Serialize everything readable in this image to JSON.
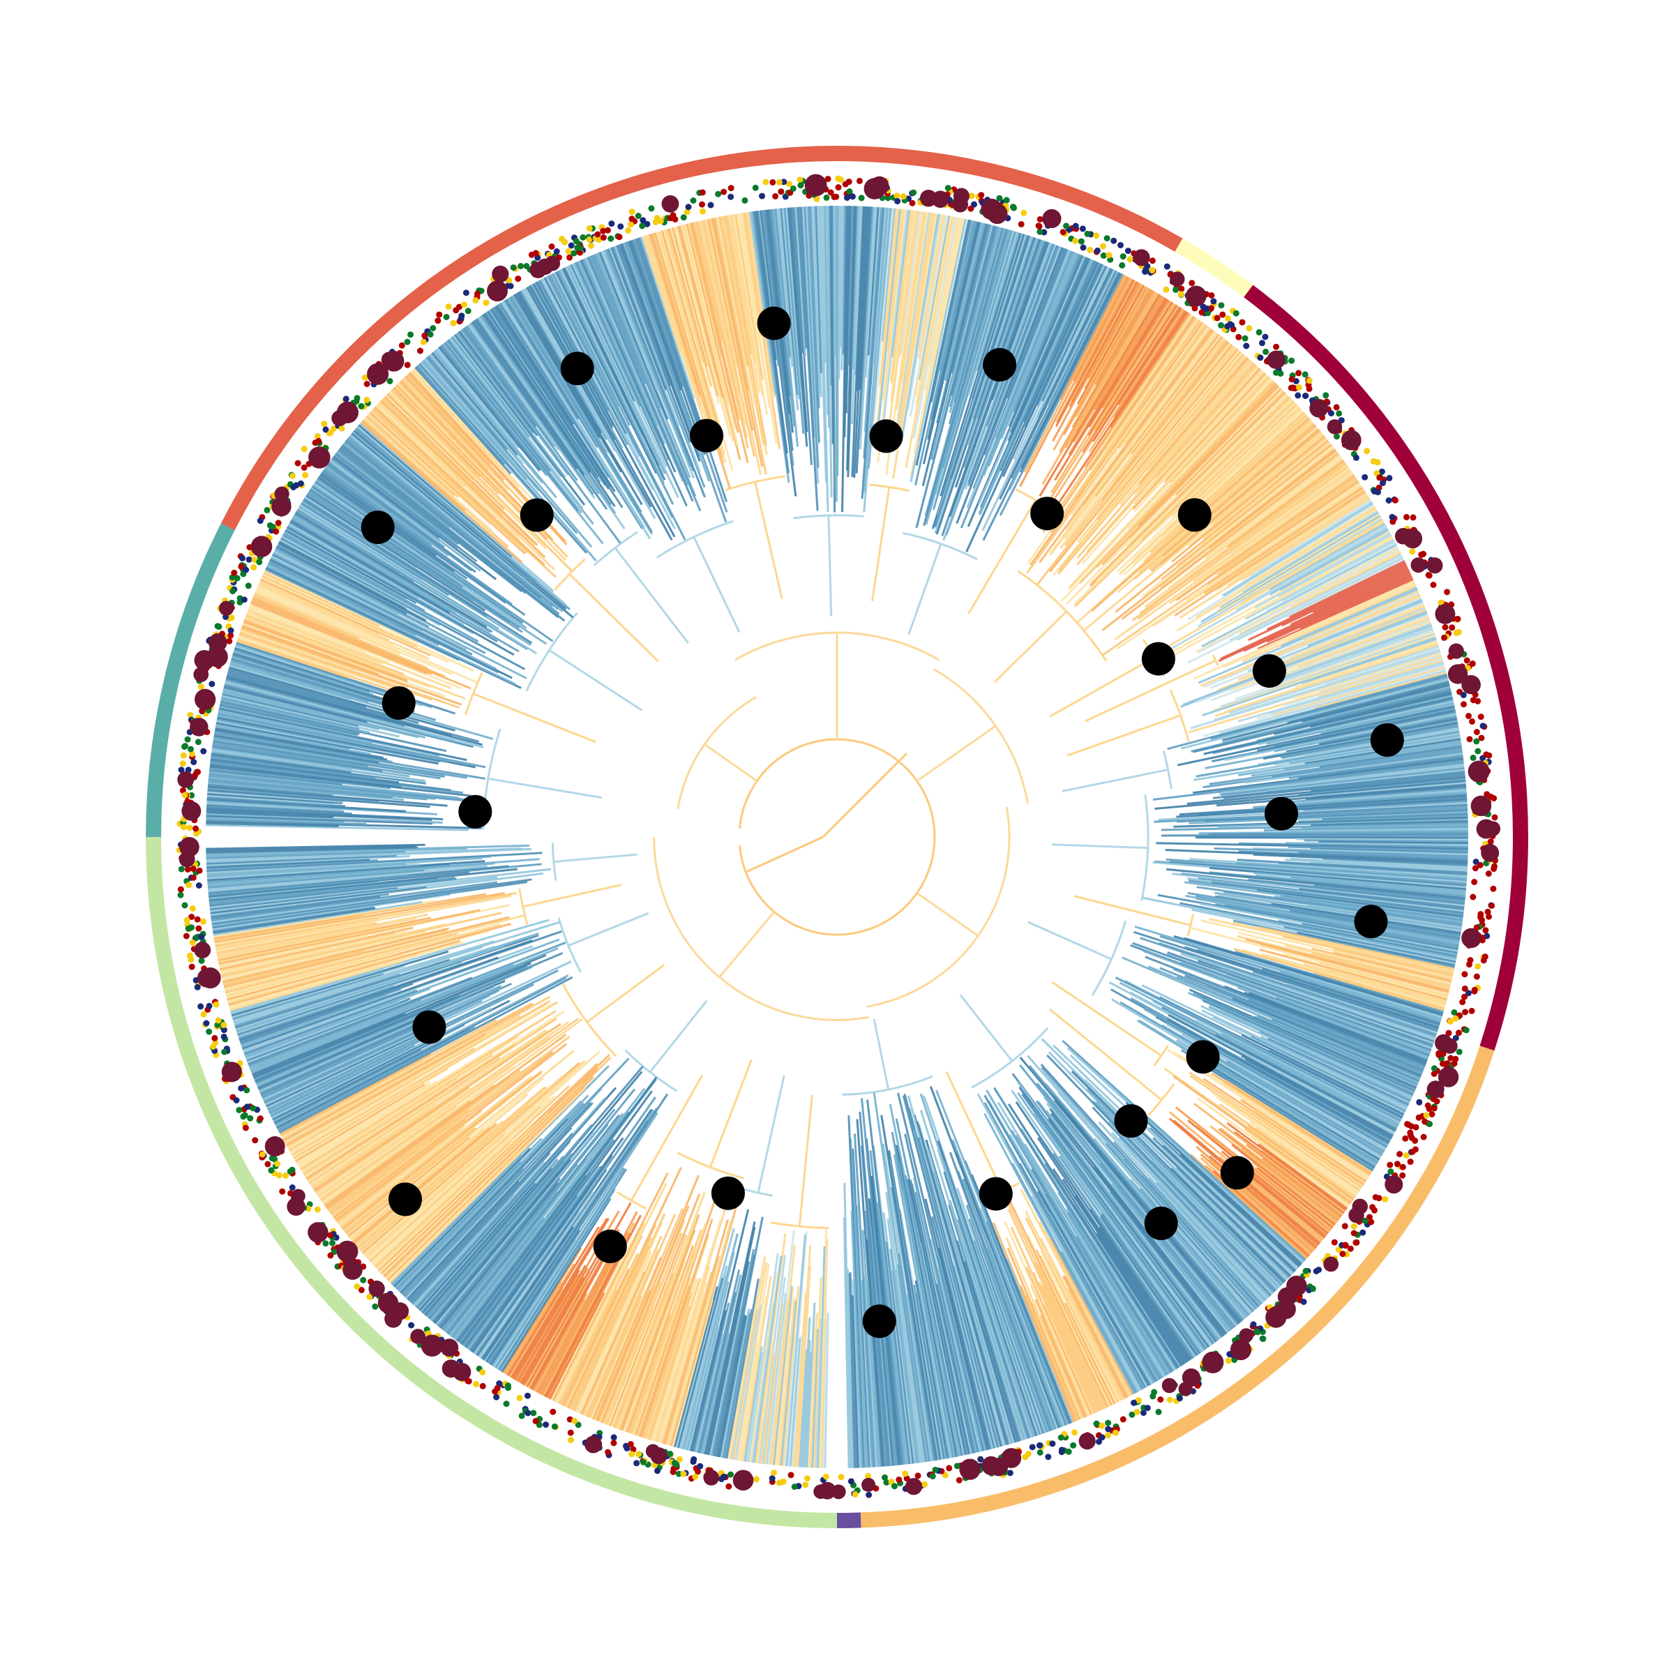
{
  "figure": {
    "type": "circular-phylogenetic-tree",
    "text_labels": [],
    "background": "#ffffff"
  },
  "palette": {
    "branch_blues": [
      "#3f7fa8",
      "#4f8fb6",
      "#5f9ec2",
      "#74b1cf",
      "#92c5dd",
      "#b2d8e6",
      "#cfe6ea"
    ],
    "branch_oranges": [
      "#fde3a6",
      "#fdd78f",
      "#fcc97a",
      "#f9b565",
      "#f59a4c",
      "#ee7a3b"
    ],
    "branch_red": "#e4614a",
    "trunk": "#fcc97a",
    "dot_red": "#b00000",
    "dot_navy": "#1a2a7a",
    "dot_green": "#0a7a2a",
    "dot_yellow": "#f5cc10",
    "dot_maroon": "#6e1634",
    "node_marker": "#000000"
  },
  "clade_ring": [
    {
      "start_deg": 180,
      "end_deg": 207,
      "color": "#5aaea8"
    },
    {
      "start_deg": 207,
      "end_deg": 300,
      "color": "#e4614a"
    },
    {
      "start_deg": 300,
      "end_deg": 307,
      "color": "#fdfcbb"
    },
    {
      "start_deg": 307,
      "end_deg": 378,
      "color": "#a0003a"
    },
    {
      "start_deg": 378,
      "end_deg": 448,
      "color": "#f9bd6a"
    },
    {
      "start_deg": 448,
      "end_deg": 450,
      "color": "#6a4f9f"
    },
    {
      "start_deg": 450,
      "end_deg": 540,
      "color": "#c4e6a4"
    }
  ],
  "clades": [
    {
      "start_deg": 181,
      "end_deg": 198,
      "style": "blue",
      "depth": 0.48
    },
    {
      "start_deg": 198,
      "end_deg": 205,
      "style": "orange",
      "depth": 0.55
    },
    {
      "start_deg": 205,
      "end_deg": 221,
      "style": "blue",
      "depth": 0.46
    },
    {
      "start_deg": 221,
      "end_deg": 228,
      "style": "orange",
      "depth": 0.52
    },
    {
      "start_deg": 228,
      "end_deg": 237,
      "style": "blue",
      "depth": 0.5
    },
    {
      "start_deg": 237,
      "end_deg": 252,
      "style": "blue",
      "depth": 0.44
    },
    {
      "start_deg": 252,
      "end_deg": 262,
      "style": "orange",
      "depth": 0.5
    },
    {
      "start_deg": 262,
      "end_deg": 275,
      "style": "blue",
      "depth": 0.42
    },
    {
      "start_deg": 275,
      "end_deg": 282,
      "style": "mixed",
      "depth": 0.48
    },
    {
      "start_deg": 282,
      "end_deg": 297,
      "style": "blue",
      "depth": 0.4
    },
    {
      "start_deg": 297,
      "end_deg": 304,
      "style": "orange-dark",
      "depth": 0.55
    },
    {
      "start_deg": 304,
      "end_deg": 327,
      "style": "orange",
      "depth": 0.42
    },
    {
      "start_deg": 327,
      "end_deg": 334,
      "style": "mixed",
      "depth": 0.5
    },
    {
      "start_deg": 334,
      "end_deg": 336,
      "style": "red",
      "depth": 0.6
    },
    {
      "start_deg": 336,
      "end_deg": 345,
      "style": "mixed",
      "depth": 0.5
    },
    {
      "start_deg": 345,
      "end_deg": 352,
      "style": "blue",
      "depth": 0.45
    },
    {
      "start_deg": 352,
      "end_deg": 372,
      "style": "blue",
      "depth": 0.4
    },
    {
      "start_deg": 372,
      "end_deg": 376,
      "style": "orange",
      "depth": 0.5
    },
    {
      "start_deg": 376,
      "end_deg": 392,
      "style": "blue",
      "depth": 0.38
    },
    {
      "start_deg": 392,
      "end_deg": 396,
      "style": "orange",
      "depth": 0.55
    },
    {
      "start_deg": 396,
      "end_deg": 402,
      "style": "orange-dark",
      "depth": 0.6
    },
    {
      "start_deg": 402,
      "end_deg": 422,
      "style": "blue",
      "depth": 0.35
    },
    {
      "start_deg": 422,
      "end_deg": 428,
      "style": "orange",
      "depth": 0.55
    },
    {
      "start_deg": 428,
      "end_deg": 449,
      "style": "blue",
      "depth": 0.3
    },
    {
      "start_deg": 451,
      "end_deg": 460,
      "style": "mixed",
      "depth": 0.55
    },
    {
      "start_deg": 460,
      "end_deg": 465,
      "style": "blue",
      "depth": 0.5
    },
    {
      "start_deg": 465,
      "end_deg": 477,
      "style": "orange",
      "depth": 0.48
    },
    {
      "start_deg": 477,
      "end_deg": 482,
      "style": "orange-dark",
      "depth": 0.6
    },
    {
      "start_deg": 482,
      "end_deg": 495,
      "style": "blue",
      "depth": 0.38
    },
    {
      "start_deg": 495,
      "end_deg": 512,
      "style": "orange",
      "depth": 0.4
    },
    {
      "start_deg": 512,
      "end_deg": 524,
      "style": "blue",
      "depth": 0.36
    },
    {
      "start_deg": 524,
      "end_deg": 531,
      "style": "orange",
      "depth": 0.42
    },
    {
      "start_deg": 531,
      "end_deg": 539,
      "style": "blue",
      "depth": 0.35
    }
  ],
  "internal_branches": [
    {
      "start_deg": 190,
      "end_deg": 240,
      "depth": 0.12
    },
    {
      "start_deg": 240,
      "end_deg": 300,
      "depth": 0.2
    },
    {
      "start_deg": 300,
      "end_deg": 350,
      "depth": 0.18
    },
    {
      "start_deg": 350,
      "end_deg": 440,
      "depth": 0.14
    },
    {
      "start_deg": 440,
      "end_deg": 540,
      "depth": 0.16
    }
  ],
  "node_markers_deg": [
    184,
    197,
    214,
    227,
    241,
    252,
    263,
    277,
    289,
    303,
    318,
    331,
    339,
    350,
    357,
    369,
    391,
    400,
    404,
    410,
    426,
    445,
    467,
    479,
    500,
    515
  ],
  "tip_rings": {
    "count": 1400
  }
}
